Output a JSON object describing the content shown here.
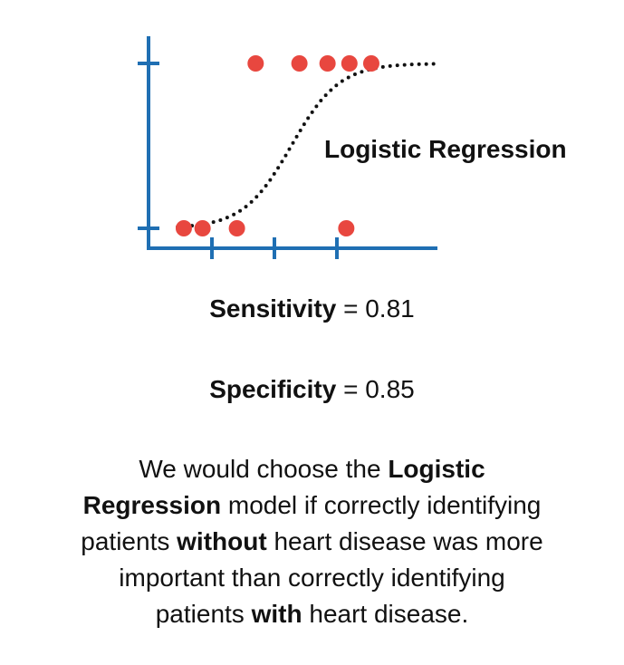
{
  "chart_data": {
    "type": "scatter",
    "title": "",
    "xlabel": "",
    "ylabel": "",
    "ylim": [
      0,
      1
    ],
    "grid": false,
    "points": [
      {
        "x": 0.55,
        "y": 0
      },
      {
        "x": 0.85,
        "y": 0
      },
      {
        "x": 1.4,
        "y": 0
      },
      {
        "x": 3.15,
        "y": 0
      },
      {
        "x": 1.7,
        "y": 1
      },
      {
        "x": 2.4,
        "y": 1
      },
      {
        "x": 2.85,
        "y": 1
      },
      {
        "x": 3.2,
        "y": 1
      },
      {
        "x": 3.55,
        "y": 1
      }
    ],
    "curve": {
      "name": "Logistic Regression",
      "style": "dotted",
      "color": "#111111"
    },
    "annotation": "Logistic Regression"
  },
  "colors": {
    "axis": "#1f6fb3",
    "point": "#e8473f",
    "curve": "#111111"
  },
  "metrics": {
    "sensitivity": {
      "label": "Sensitivity",
      "value": "= 0.81"
    },
    "specificity": {
      "label": "Specificity",
      "value": "= 0.85"
    }
  },
  "conclusion": {
    "l1_a": "We would choose the ",
    "l1_b": "Logistic",
    "l2_a": "Regression",
    "l2_b": " model if correctly identifying",
    "l3_a": "patients ",
    "l3_b": "without",
    "l3_c": " heart disease was more",
    "l4_a": "important than correctly identifying",
    "l5_a": "patients ",
    "l5_b": "with",
    "l5_c": " heart disease."
  }
}
